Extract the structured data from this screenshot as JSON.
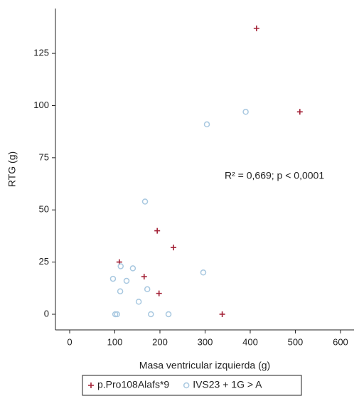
{
  "chart_data": {
    "type": "scatter",
    "x_label": "Masa ventricular izquierda (g)",
    "y_label": "RTG (g)",
    "annotation": "R² = 0,669; p < 0,0001",
    "xlim": [
      -31.5,
      630
    ],
    "xticks": [
      0,
      100,
      200,
      300,
      400,
      500,
      600
    ],
    "ylim": [
      -7.5,
      146.5
    ],
    "yticks": [
      0,
      25,
      50,
      75,
      100,
      125
    ],
    "legend": "bottom",
    "series": [
      {
        "name": "p.Pro108Alafs*9",
        "color": "#a32035",
        "marker": "plus",
        "x": [
          414,
          510,
          194,
          230,
          110,
          165,
          198,
          338
        ],
        "values": [
          137,
          97,
          40,
          32,
          25,
          18,
          10,
          0
        ]
      },
      {
        "name": "IVS23 + 1G > A",
        "color": "#a8c8e0",
        "marker": "circle",
        "x": [
          390,
          304,
          167,
          296,
          113,
          140,
          96,
          126,
          172,
          112,
          153,
          101,
          105,
          180,
          219
        ],
        "values": [
          97,
          91,
          54,
          20,
          23,
          22,
          17,
          16,
          12,
          11,
          6,
          0,
          0,
          0,
          0
        ]
      }
    ]
  }
}
